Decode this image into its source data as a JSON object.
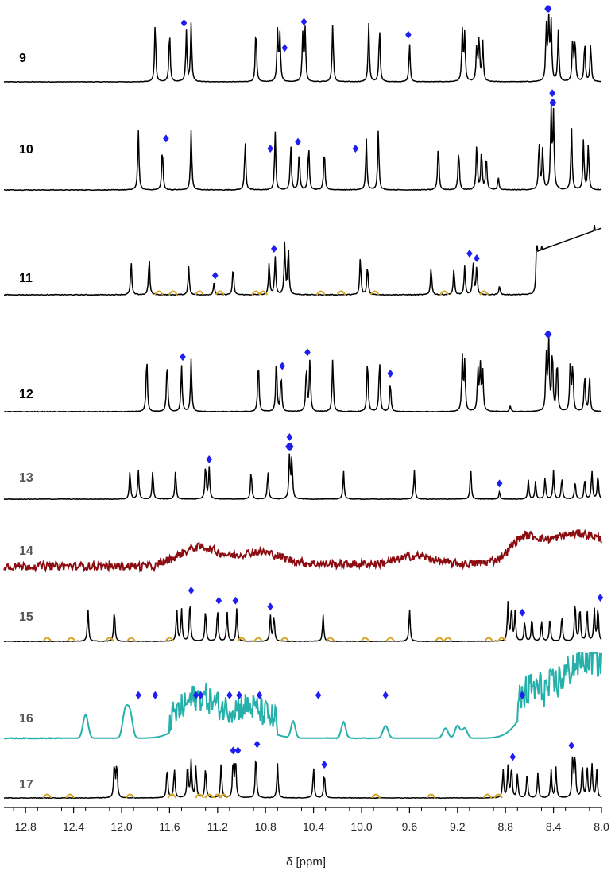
{
  "colors": {
    "trace_default": "#000000",
    "marker": "#1f1ff0",
    "highlight": "#d6a424",
    "spectrum_14": "#8b0d12",
    "spectrum_16": "#25b0aa",
    "label_grey": "#555555"
  },
  "chart_data": {
    "type": "line",
    "title": "",
    "xlabel": "δ [ppm]",
    "ylabel": "",
    "xlim": [
      12.98,
      8.0
    ],
    "x_reversed": true,
    "x_ticks": [
      12.8,
      12.4,
      12.0,
      11.6,
      11.2,
      10.8,
      10.4,
      10.0,
      9.6,
      9.2,
      8.8,
      8.4,
      8.0
    ],
    "x_tick_labels": [
      "12.8",
      "12.4",
      "12.0",
      "11.6",
      "11.2",
      "10.8",
      "10.4",
      "10.0",
      "9.6",
      "9.2",
      "8.8",
      "8.4",
      "8.0"
    ],
    "marker_symbol": "◆",
    "series": [
      {
        "name": "9",
        "color_key": "trace_default",
        "label_color_key": "trace_default",
        "peaks": [
          [
            11.72,
            0.92
          ],
          [
            11.6,
            0.8
          ],
          [
            11.46,
            0.78
          ],
          [
            11.42,
            0.9
          ],
          [
            10.88,
            0.85
          ],
          [
            10.7,
            0.78
          ],
          [
            10.68,
            0.72
          ],
          [
            10.49,
            0.72
          ],
          [
            10.47,
            0.8
          ],
          [
            10.24,
            0.9
          ],
          [
            9.94,
            0.9
          ],
          [
            9.85,
            0.85
          ],
          [
            9.6,
            0.6
          ],
          [
            9.16,
            0.78
          ],
          [
            9.14,
            0.72
          ],
          [
            9.04,
            0.55
          ],
          [
            9.02,
            0.68
          ],
          [
            8.99,
            0.62
          ],
          [
            8.46,
            0.85
          ],
          [
            8.44,
            1.0
          ],
          [
            8.42,
            0.9
          ],
          [
            8.36,
            0.78
          ],
          [
            8.24,
            0.68
          ],
          [
            8.22,
            0.65
          ],
          [
            8.14,
            0.62
          ],
          [
            8.09,
            0.6
          ]
        ],
        "markers": [
          11.48,
          10.48,
          10.64,
          9.61,
          8.44,
          8.45
        ],
        "highlights": []
      },
      {
        "name": "10",
        "color_key": "trace_default",
        "label_color_key": "trace_default",
        "peaks": [
          [
            11.86,
            0.72
          ],
          [
            11.66,
            0.52
          ],
          [
            11.42,
            0.72
          ],
          [
            10.97,
            0.6
          ],
          [
            10.72,
            0.7
          ],
          [
            10.59,
            0.55
          ],
          [
            10.52,
            0.48
          ],
          [
            10.44,
            0.55
          ],
          [
            10.31,
            0.5
          ],
          [
            9.96,
            0.62
          ],
          [
            9.86,
            0.72
          ],
          [
            9.36,
            0.58
          ],
          [
            9.19,
            0.5
          ],
          [
            9.04,
            0.55
          ],
          [
            9.0,
            0.48
          ],
          [
            8.96,
            0.42
          ],
          [
            8.86,
            0.15
          ],
          [
            8.52,
            0.6
          ],
          [
            8.49,
            0.5
          ],
          [
            8.42,
            0.95
          ],
          [
            8.4,
            0.9
          ],
          [
            8.25,
            0.75
          ],
          [
            8.15,
            0.6
          ],
          [
            8.11,
            0.55
          ]
        ],
        "markers": [
          11.63,
          10.76,
          10.53,
          10.05,
          8.41,
          8.4,
          8.41
        ],
        "highlights": []
      },
      {
        "name": "11",
        "color_key": "trace_default",
        "label_color_key": "trace_default",
        "peaks": [
          [
            11.92,
            0.35
          ],
          [
            11.77,
            0.4
          ],
          [
            11.44,
            0.3
          ],
          [
            11.23,
            0.12
          ],
          [
            11.07,
            0.3
          ],
          [
            10.77,
            0.35
          ],
          [
            10.72,
            0.4
          ],
          [
            10.64,
            0.55
          ],
          [
            10.61,
            0.5
          ],
          [
            10.01,
            0.4
          ],
          [
            9.95,
            0.32
          ],
          [
            9.42,
            0.3
          ],
          [
            9.23,
            0.28
          ],
          [
            9.14,
            0.3
          ],
          [
            9.07,
            0.35
          ],
          [
            9.04,
            0.3
          ],
          [
            8.85,
            0.1
          ],
          [
            8.54,
            0.6
          ],
          [
            8.5,
            0.55
          ],
          [
            8.44,
            0.5
          ],
          [
            8.35,
            0.45
          ],
          [
            8.3,
            0.55
          ],
          [
            8.21,
            0.4
          ],
          [
            8.14,
            0.48
          ],
          [
            8.06,
            0.75
          ]
        ],
        "markers": [
          11.22,
          10.73,
          9.1,
          9.04
        ],
        "highlights": [
          11.69,
          11.57,
          11.35,
          11.18,
          10.88,
          10.82,
          10.34,
          10.17,
          9.89,
          9.31,
          8.98
        ]
      },
      {
        "name": "12",
        "color_key": "trace_default",
        "label_color_key": "trace_default",
        "peaks": [
          [
            11.79,
            0.75
          ],
          [
            11.62,
            0.7
          ],
          [
            11.5,
            0.62
          ],
          [
            11.42,
            0.7
          ],
          [
            10.86,
            0.7
          ],
          [
            10.71,
            0.72
          ],
          [
            10.67,
            0.5
          ],
          [
            10.46,
            0.62
          ],
          [
            10.43,
            0.68
          ],
          [
            10.24,
            0.7
          ],
          [
            9.95,
            0.72
          ],
          [
            9.85,
            0.7
          ],
          [
            9.76,
            0.4
          ],
          [
            9.16,
            0.72
          ],
          [
            9.14,
            0.65
          ],
          [
            9.03,
            0.55
          ],
          [
            9.01,
            0.6
          ],
          [
            8.99,
            0.52
          ],
          [
            8.76,
            0.08
          ],
          [
            8.46,
            0.75
          ],
          [
            8.44,
            0.92
          ],
          [
            8.41,
            0.82
          ],
          [
            8.37,
            0.7
          ],
          [
            8.26,
            0.66
          ],
          [
            8.24,
            0.62
          ],
          [
            8.14,
            0.5
          ],
          [
            8.1,
            0.48
          ]
        ],
        "markers": [
          11.49,
          10.66,
          10.45,
          9.76,
          8.45,
          8.44
        ],
        "highlights": []
      },
      {
        "name": "13",
        "color_key": "trace_default",
        "label_color_key": "label_grey",
        "peaks": [
          [
            11.93,
            0.45
          ],
          [
            11.86,
            0.45
          ],
          [
            11.74,
            0.45
          ],
          [
            11.55,
            0.45
          ],
          [
            11.3,
            0.55
          ],
          [
            11.27,
            0.5
          ],
          [
            10.92,
            0.45
          ],
          [
            10.78,
            0.45
          ],
          [
            10.6,
            0.7
          ],
          [
            10.58,
            0.65
          ],
          [
            10.15,
            0.45
          ],
          [
            9.56,
            0.45
          ],
          [
            9.09,
            0.5
          ],
          [
            8.85,
            0.12
          ],
          [
            8.61,
            0.3
          ],
          [
            8.55,
            0.28
          ],
          [
            8.47,
            0.35
          ],
          [
            8.4,
            0.45
          ],
          [
            8.33,
            0.35
          ],
          [
            8.22,
            0.3
          ],
          [
            8.14,
            0.32
          ],
          [
            8.08,
            0.45
          ],
          [
            8.03,
            0.4
          ]
        ],
        "markers": [
          11.27,
          10.61,
          10.6,
          10.6,
          10.59,
          8.85
        ],
        "highlights": []
      },
      {
        "name": "14",
        "color_key": "spectrum_14",
        "label_color_key": "label_grey",
        "peaks": [],
        "markers": [],
        "highlights": []
      },
      {
        "name": "15",
        "color_key": "trace_default",
        "label_color_key": "label_grey",
        "peaks": [
          [
            12.28,
            0.55
          ],
          [
            12.06,
            0.55
          ],
          [
            11.54,
            0.55
          ],
          [
            11.5,
            0.55
          ],
          [
            11.43,
            0.72
          ],
          [
            11.3,
            0.55
          ],
          [
            11.2,
            0.55
          ],
          [
            11.12,
            0.5
          ],
          [
            11.04,
            0.55
          ],
          [
            10.76,
            0.45
          ],
          [
            10.73,
            0.45
          ],
          [
            10.32,
            0.45
          ],
          [
            9.6,
            0.55
          ],
          [
            8.78,
            0.65
          ],
          [
            8.75,
            0.6
          ],
          [
            8.72,
            0.5
          ],
          [
            8.64,
            0.35
          ],
          [
            8.58,
            0.4
          ],
          [
            8.5,
            0.35
          ],
          [
            8.43,
            0.4
          ],
          [
            8.33,
            0.45
          ],
          [
            8.22,
            0.7
          ],
          [
            8.18,
            0.6
          ],
          [
            8.12,
            0.55
          ],
          [
            8.06,
            0.55
          ],
          [
            8.03,
            0.6
          ]
        ],
        "markers": [
          11.42,
          11.19,
          11.05,
          10.76,
          8.66,
          8.01
        ],
        "highlights": [
          12.62,
          12.42,
          12.1,
          11.92,
          11.6,
          11.0,
          10.86,
          10.64,
          10.26,
          9.97,
          9.76,
          9.35,
          9.28,
          8.94,
          8.83
        ]
      },
      {
        "name": "16",
        "color_key": "spectrum_16",
        "label_color_key": "label_grey",
        "peaks": [],
        "markers": [
          11.86,
          11.72,
          11.38,
          11.34,
          11.1,
          11.02,
          10.85,
          10.36,
          9.8,
          8.66
        ],
        "highlights": []
      },
      {
        "name": "17",
        "color_key": "trace_default",
        "label_color_key": "label_grey",
        "peaks": [
          [
            12.06,
            0.55
          ],
          [
            12.04,
            0.55
          ],
          [
            11.62,
            0.5
          ],
          [
            11.56,
            0.48
          ],
          [
            11.45,
            0.55
          ],
          [
            11.42,
            0.58
          ],
          [
            11.38,
            0.5
          ],
          [
            11.3,
            0.5
          ],
          [
            11.17,
            0.55
          ],
          [
            11.07,
            0.6
          ],
          [
            11.05,
            0.62
          ],
          [
            10.88,
            0.72
          ],
          [
            10.7,
            0.55
          ],
          [
            10.4,
            0.5
          ],
          [
            10.31,
            0.4
          ],
          [
            8.82,
            0.45
          ],
          [
            8.78,
            0.5
          ],
          [
            8.75,
            0.52
          ],
          [
            8.7,
            0.38
          ],
          [
            8.62,
            0.4
          ],
          [
            8.53,
            0.4
          ],
          [
            8.42,
            0.45
          ],
          [
            8.38,
            0.48
          ],
          [
            8.24,
            0.7
          ],
          [
            8.22,
            0.68
          ],
          [
            8.16,
            0.55
          ],
          [
            8.12,
            0.5
          ],
          [
            8.08,
            0.55
          ],
          [
            8.04,
            0.45
          ]
        ],
        "markers": [
          11.07,
          11.03,
          10.87,
          10.31,
          8.74,
          8.25
        ],
        "highlights": [
          12.62,
          12.43,
          11.93,
          11.58,
          11.35,
          11.27,
          11.2,
          11.15,
          9.88,
          9.42,
          8.95,
          8.86
        ]
      }
    ]
  }
}
